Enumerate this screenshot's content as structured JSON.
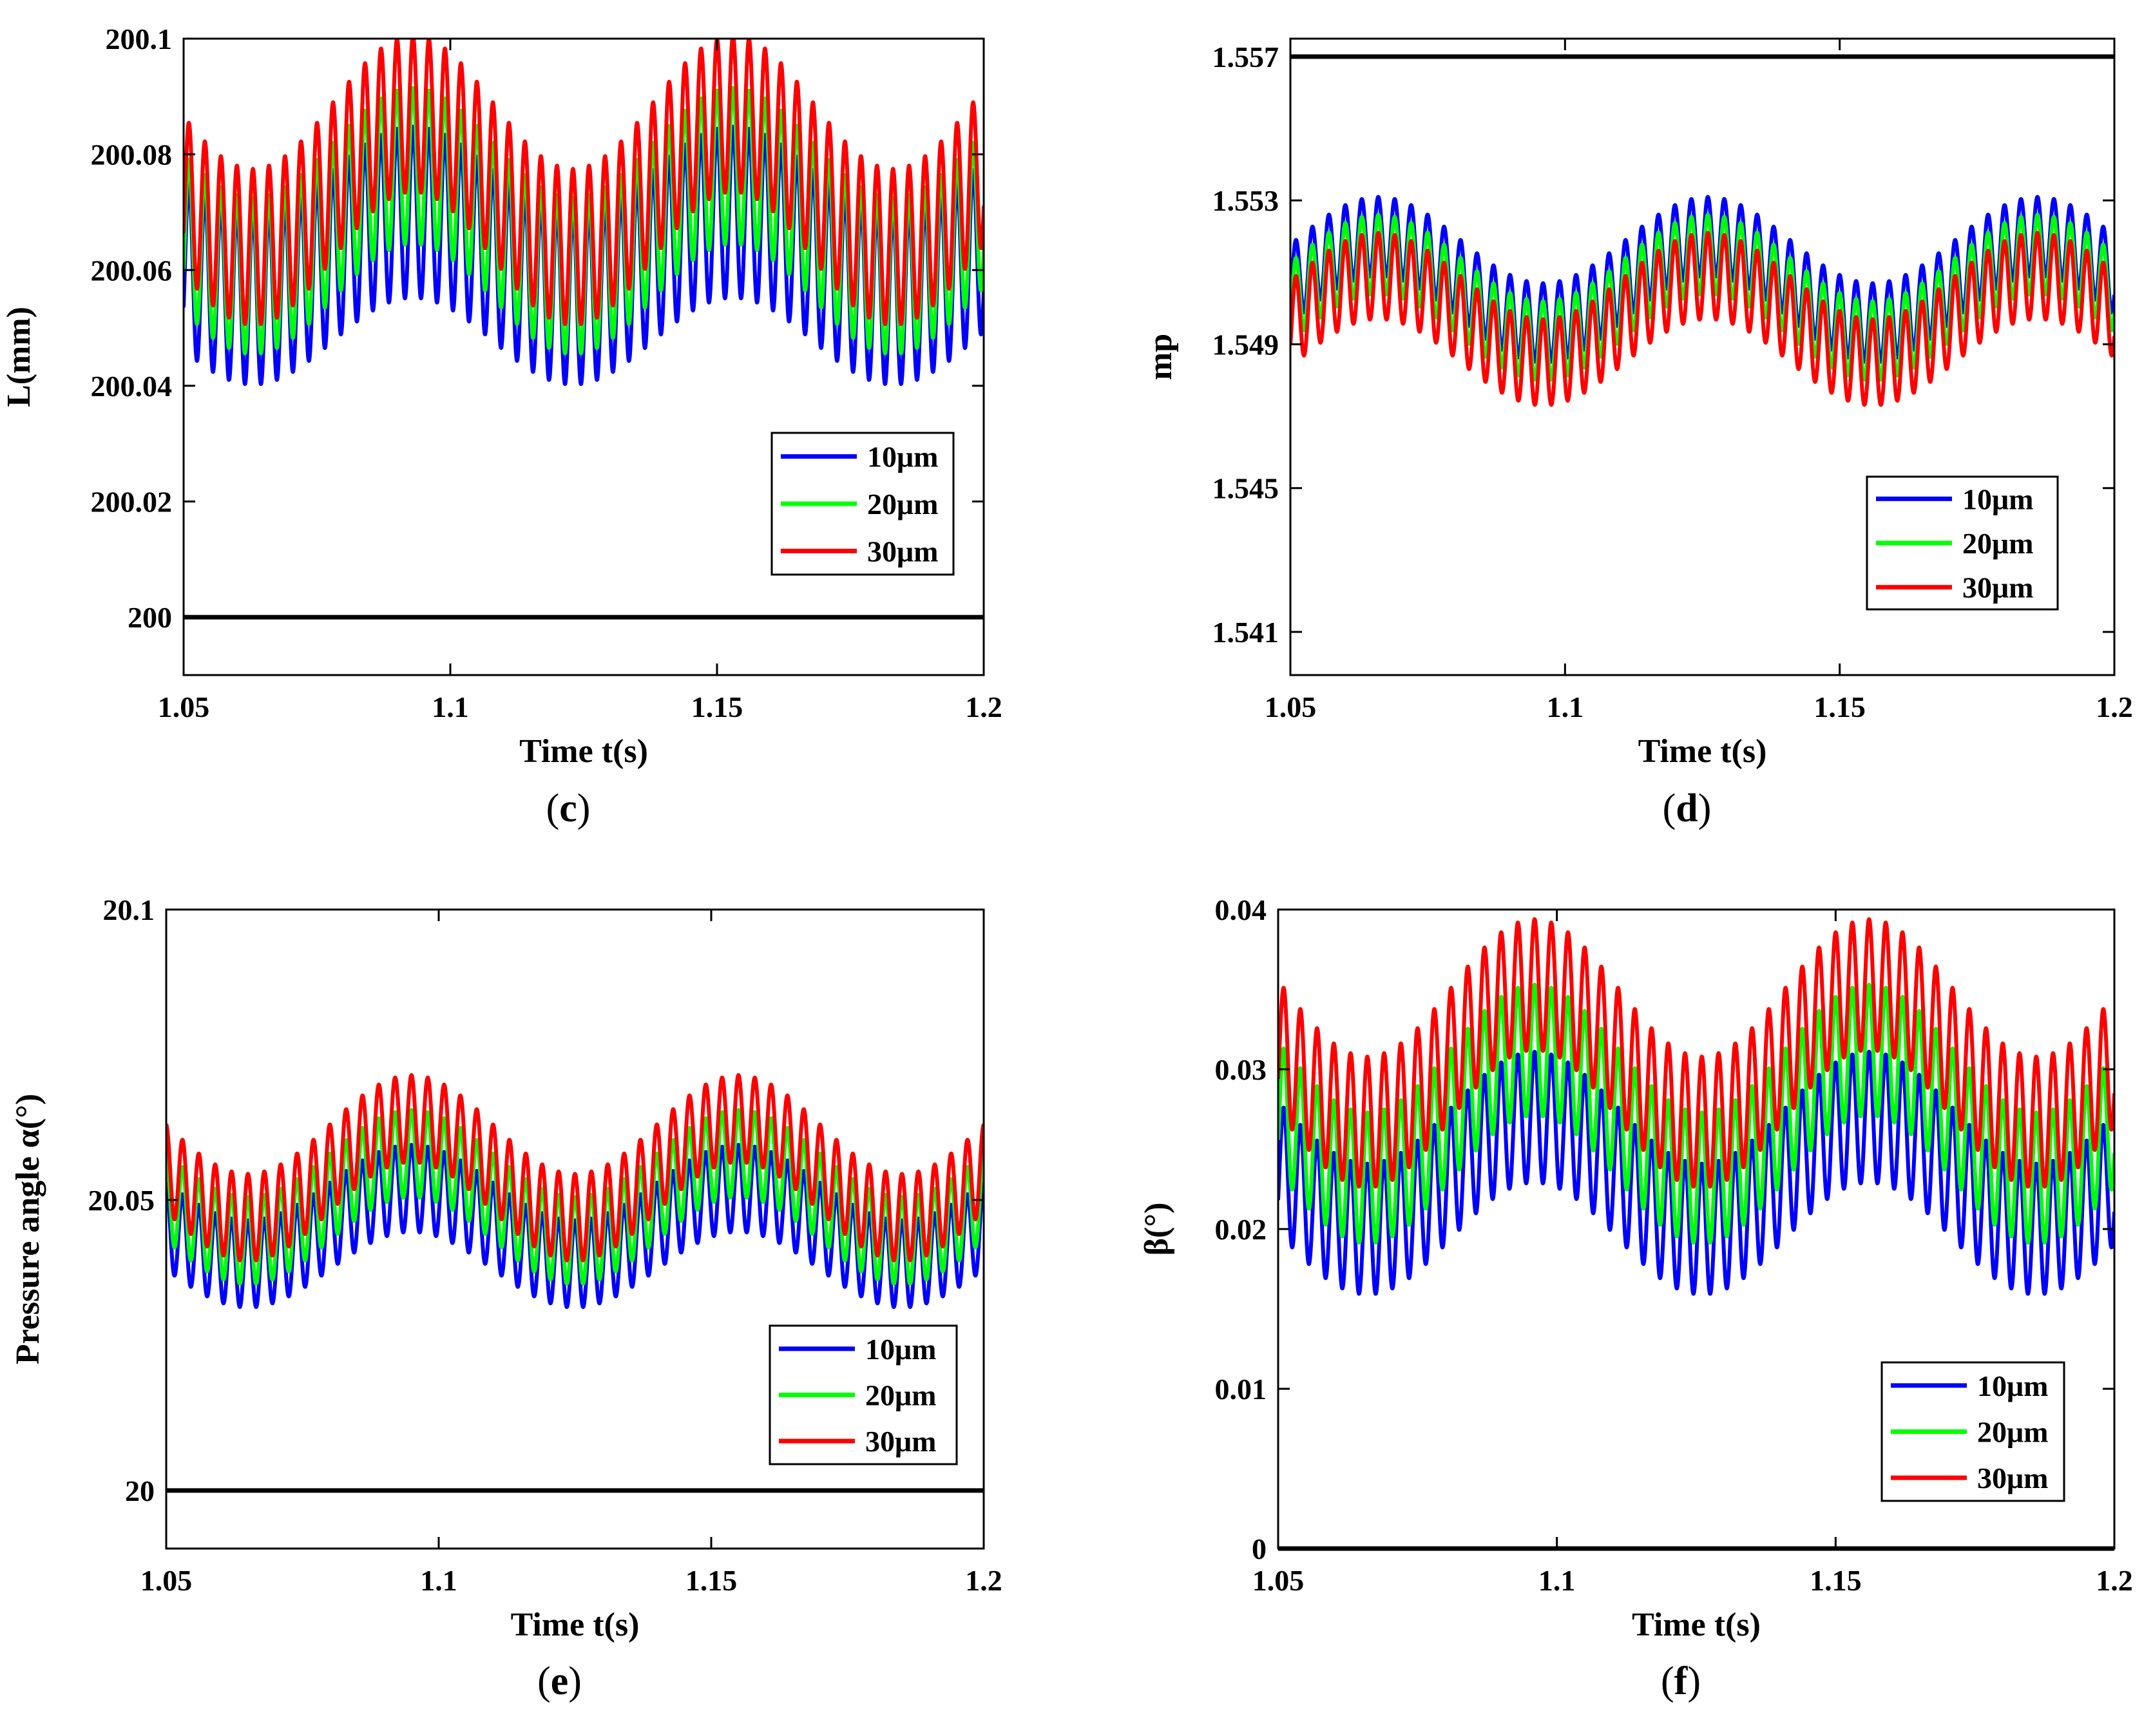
{
  "figure": {
    "legend_colors": {
      "10μm": "#0000ff",
      "20μm": "#00ff00",
      "30μm": "#ff0000",
      "reference": "#000000"
    }
  },
  "chart_data": [
    {
      "id": "c",
      "type": "line",
      "caption": "c",
      "xlabel": "Time t(s)",
      "ylabel": "L(mm)",
      "xlim": [
        1.05,
        1.2
      ],
      "ylim": [
        199.99,
        200.1
      ],
      "xticks": [
        "1.05",
        "1.1",
        "1.15",
        "1.2"
      ],
      "yticks": [
        "200",
        "200.02",
        "200.04",
        "200.06",
        "200.08",
        "200.1"
      ],
      "legend": [
        "10μm",
        "20μm",
        "30μm"
      ],
      "legend_position": "lower-right",
      "reference_line": 200,
      "slow_period": 0.06,
      "fast_period": 0.003,
      "phase_peak_x": 1.093,
      "series": [
        {
          "name": "10μm",
          "color": "#0000ff",
          "center": 200.0625,
          "slow_amp": 0.0075,
          "fast_amp": 0.0148
        },
        {
          "name": "20μm",
          "color": "#00ff00",
          "center": 200.0685,
          "slow_amp": 0.0095,
          "fast_amp": 0.0135
        },
        {
          "name": "30μm",
          "color": "#ff0000",
          "center": 200.0755,
          "slow_amp": 0.0115,
          "fast_amp": 0.0135
        }
      ]
    },
    {
      "id": "d",
      "type": "line",
      "caption": "d",
      "xlabel": "Time t(s)",
      "ylabel": "mp",
      "xlim": [
        1.05,
        1.2
      ],
      "ylim": [
        1.5398,
        1.5575
      ],
      "xticks": [
        "1.05",
        "1.1",
        "1.15",
        "1.2"
      ],
      "yticks": [
        "1.541",
        "1.545",
        "1.549",
        "1.553",
        "1.557"
      ],
      "legend": [
        "10μm",
        "20μm",
        "30μm"
      ],
      "legend_position": "lower-right",
      "reference_line": 1.557,
      "slow_period": 0.06,
      "fast_period": 0.003,
      "phase_peak_x": 1.066,
      "series": [
        {
          "name": "10μm",
          "color": "#0000ff",
          "center": 1.5508,
          "slow_amp": 0.0012,
          "fast_amp": 0.0011
        },
        {
          "name": "20μm",
          "color": "#00ff00",
          "center": 1.5503,
          "slow_amp": 0.0012,
          "fast_amp": 0.0011
        },
        {
          "name": "30μm",
          "color": "#ff0000",
          "center": 1.5497,
          "slow_amp": 0.0012,
          "fast_amp": 0.0012
        }
      ]
    },
    {
      "id": "e",
      "type": "line",
      "caption": "e",
      "xlabel": "Time t(s)",
      "ylabel": "Pressure angle α(°)",
      "xlim": [
        1.05,
        1.2
      ],
      "ylim": [
        19.99,
        20.1
      ],
      "xticks": [
        "1.05",
        "1.1",
        "1.15",
        "1.2"
      ],
      "yticks": [
        "20",
        "20.05",
        "20.1"
      ],
      "legend": [
        "10μm",
        "20μm",
        "30μm"
      ],
      "legend_position": "lower-right",
      "reference_line": 20,
      "slow_period": 0.06,
      "fast_period": 0.003,
      "phase_peak_x": 1.095,
      "series": [
        {
          "name": "10μm",
          "color": "#0000ff",
          "center": 20.0455,
          "slow_amp": 0.0065,
          "fast_amp": 0.0075
        },
        {
          "name": "20μm",
          "color": "#00ff00",
          "center": 20.0505,
          "slow_amp": 0.0075,
          "fast_amp": 0.0075
        },
        {
          "name": "30μm",
          "color": "#ff0000",
          "center": 20.0555,
          "slow_amp": 0.0085,
          "fast_amp": 0.0075
        }
      ]
    },
    {
      "id": "f",
      "type": "line",
      "caption": "f",
      "xlabel": "Time t(s)",
      "ylabel": "β(°)",
      "xlim": [
        1.05,
        1.2
      ],
      "ylim": [
        0,
        0.04
      ],
      "xticks": [
        "1.05",
        "1.1",
        "1.15",
        "1.2"
      ],
      "yticks": [
        "0",
        "0.01",
        "0.02",
        "0.03",
        "0.04"
      ],
      "legend": [
        "10μm",
        "20μm",
        "30μm"
      ],
      "legend_position": "lower-right",
      "reference_line": 0,
      "slow_period": 0.06,
      "fast_period": 0.003,
      "phase_peak_x": 1.096,
      "series": [
        {
          "name": "10μm",
          "color": "#0000ff",
          "center": 0.0235,
          "slow_amp": 0.0035,
          "fast_amp": 0.0041
        },
        {
          "name": "20μm",
          "color": "#00ff00",
          "center": 0.0272,
          "slow_amp": 0.004,
          "fast_amp": 0.0041
        },
        {
          "name": "30μm",
          "color": "#ff0000",
          "center": 0.031,
          "slow_amp": 0.0043,
          "fast_amp": 0.0041
        }
      ]
    }
  ]
}
